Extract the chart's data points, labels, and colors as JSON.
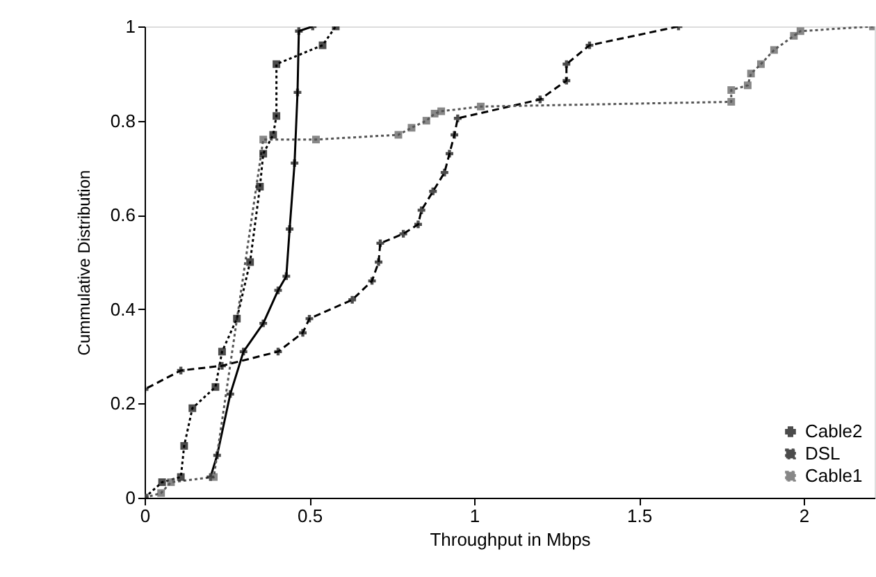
{
  "chart_data": {
    "type": "line",
    "xlabel": "Throughput in Mbps",
    "ylabel": "Cummulative Distribution",
    "xlim": [
      0,
      2.215
    ],
    "ylim": [
      0,
      1
    ],
    "xticks": [
      0,
      0.5,
      1,
      1.5,
      2
    ],
    "yticks": [
      0,
      0.2,
      0.4,
      0.6,
      0.8,
      1
    ],
    "grid": false,
    "legend": "bottom right",
    "series": [
      {
        "name": "Cable2",
        "color": "#000000",
        "line_style": "solid",
        "marker": "cross",
        "x": [
          0.2,
          0.22,
          0.26,
          0.3,
          0.36,
          0.405,
          0.43,
          0.44,
          0.455,
          0.464,
          0.468,
          0.51
        ],
        "values": [
          0.044,
          0.09,
          0.22,
          0.31,
          0.37,
          0.44,
          0.47,
          0.57,
          0.71,
          0.86,
          0.99,
          1.0
        ]
      },
      {
        "color": "#000000",
        "line_style": "dashed",
        "marker": "cross",
        "x": [
          0,
          0,
          0.11,
          0.235,
          0.405,
          0.48,
          0.5,
          0.63,
          0.69,
          0.71,
          0.715,
          0.785,
          0.83,
          0.84,
          0.875,
          0.91,
          0.925,
          0.94,
          0.95,
          1.2,
          1.28,
          1.28,
          1.35,
          1.62
        ],
        "values": [
          0,
          0.23,
          0.27,
          0.28,
          0.31,
          0.35,
          0.38,
          0.42,
          0.46,
          0.5,
          0.54,
          0.56,
          0.58,
          0.61,
          0.65,
          0.69,
          0.73,
          0.77,
          0.805,
          0.845,
          0.885,
          0.92,
          0.96,
          1.0
        ]
      },
      {
        "name": "DSL",
        "color": "#000000",
        "line_style": "dotted",
        "marker": "square",
        "x": [
          0,
          0.053,
          0.11,
          0.12,
          0.145,
          0.215,
          0.235,
          0.28,
          0.32,
          0.35,
          0.36,
          0.39,
          0.4,
          0.4,
          0.54,
          0.58
        ],
        "values": [
          0,
          0.033,
          0.044,
          0.11,
          0.19,
          0.235,
          0.31,
          0.38,
          0.5,
          0.66,
          0.73,
          0.77,
          0.81,
          0.92,
          0.96,
          1.0
        ]
      },
      {
        "name": "Cable1",
        "color": "#555555",
        "line_style": "dotted",
        "marker": "square",
        "x": [
          0,
          0.05,
          0.08,
          0.21,
          0.36,
          0.52,
          0.77,
          0.81,
          0.855,
          0.88,
          0.9,
          1.02,
          1.78,
          1.78,
          1.83,
          1.84,
          1.87,
          1.91,
          1.97,
          1.99,
          2.21
        ],
        "values": [
          0,
          0.01,
          0.033,
          0.044,
          0.76,
          0.76,
          0.77,
          0.785,
          0.8,
          0.815,
          0.82,
          0.83,
          0.84,
          0.865,
          0.875,
          0.9,
          0.92,
          0.95,
          0.98,
          0.99,
          1.0
        ]
      }
    ]
  }
}
